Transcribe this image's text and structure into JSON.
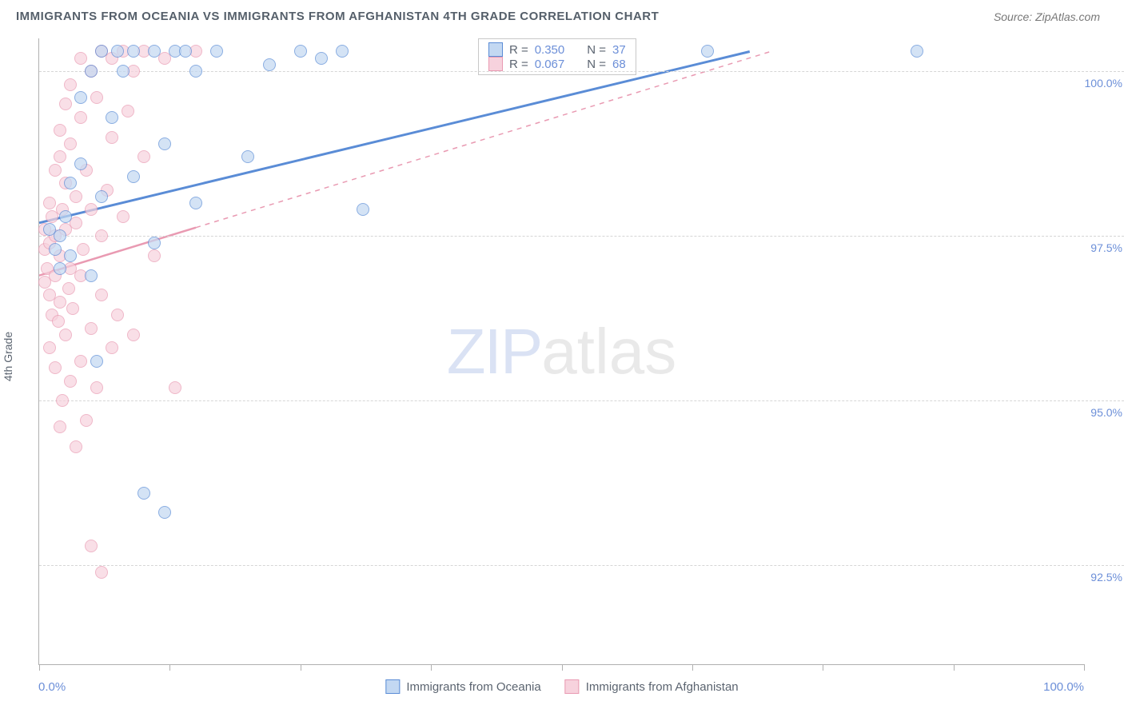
{
  "title": "IMMIGRANTS FROM OCEANIA VS IMMIGRANTS FROM AFGHANISTAN 4TH GRADE CORRELATION CHART",
  "source": "Source: ZipAtlas.com",
  "chart": {
    "type": "scatter",
    "y_axis_title": "4th Grade",
    "xlim": [
      0,
      100
    ],
    "ylim": [
      91.0,
      100.5
    ],
    "x_ticks": [
      0,
      12.5,
      25,
      37.5,
      50,
      62.5,
      75,
      87.5,
      100
    ],
    "x_tick_labels": {
      "0": "0.0%",
      "100": "100.0%"
    },
    "y_gridlines": [
      92.5,
      95.0,
      97.5,
      100.0
    ],
    "y_tick_labels": {
      "92.5": "92.5%",
      "95.0": "95.0%",
      "97.5": "97.5%",
      "100.0": "100.0%"
    },
    "background_color": "#ffffff",
    "grid_color": "#d6d6d6",
    "axis_color": "#b0b0b0",
    "tick_label_color": "#6c8fd8",
    "tick_fontsize": 14,
    "title_fontsize": 15,
    "title_color": "#555f6a",
    "marker_radius": 8,
    "marker_opacity": 0.7,
    "series": [
      {
        "name": "Immigrants from Oceania",
        "stroke": "#5a8cd6",
        "fill": "#c3d8f2",
        "R": "0.350",
        "N": "37",
        "regression": {
          "x1": 0,
          "y1": 97.7,
          "x2": 68,
          "y2": 100.3,
          "dash": false,
          "width": 3
        },
        "points": [
          [
            1,
            97.6
          ],
          [
            1.5,
            97.3
          ],
          [
            2,
            97.0
          ],
          [
            2,
            97.5
          ],
          [
            2.5,
            97.8
          ],
          [
            3,
            97.2
          ],
          [
            3,
            98.3
          ],
          [
            4,
            98.6
          ],
          [
            4,
            99.6
          ],
          [
            5,
            96.9
          ],
          [
            5,
            100.0
          ],
          [
            5.5,
            95.6
          ],
          [
            6,
            98.1
          ],
          [
            6,
            100.3
          ],
          [
            7,
            99.3
          ],
          [
            7.5,
            100.3
          ],
          [
            8,
            100.0
          ],
          [
            9,
            98.4
          ],
          [
            9,
            100.3
          ],
          [
            10,
            93.6
          ],
          [
            11,
            97.4
          ],
          [
            11,
            100.3
          ],
          [
            12,
            93.3
          ],
          [
            12,
            98.9
          ],
          [
            13,
            100.3
          ],
          [
            14,
            100.3
          ],
          [
            15,
            98.0
          ],
          [
            15,
            100.0
          ],
          [
            17,
            100.3
          ],
          [
            20,
            98.7
          ],
          [
            22,
            100.1
          ],
          [
            25,
            100.3
          ],
          [
            27,
            100.2
          ],
          [
            29,
            100.3
          ],
          [
            31,
            97.9
          ],
          [
            64,
            100.3
          ],
          [
            84,
            100.3
          ]
        ]
      },
      {
        "name": "Immigrants from Afghanistan",
        "stroke": "#e99ab2",
        "fill": "#f7d2dd",
        "R": "0.067",
        "N": "68",
        "regression": {
          "x1": 0,
          "y1": 96.9,
          "x2": 70,
          "y2": 100.3,
          "dash": true,
          "width": 1.5
        },
        "regression_solid_end_x": 15,
        "points": [
          [
            0.5,
            97.3
          ],
          [
            0.5,
            96.8
          ],
          [
            0.5,
            97.6
          ],
          [
            0.8,
            97.0
          ],
          [
            1,
            97.4
          ],
          [
            1,
            96.6
          ],
          [
            1,
            98.0
          ],
          [
            1,
            95.8
          ],
          [
            1.2,
            96.3
          ],
          [
            1.2,
            97.8
          ],
          [
            1.5,
            96.9
          ],
          [
            1.5,
            97.5
          ],
          [
            1.5,
            95.5
          ],
          [
            1.5,
            98.5
          ],
          [
            1.8,
            96.2
          ],
          [
            2,
            97.2
          ],
          [
            2,
            96.5
          ],
          [
            2,
            98.7
          ],
          [
            2,
            94.6
          ],
          [
            2,
            99.1
          ],
          [
            2.2,
            97.9
          ],
          [
            2.2,
            95.0
          ],
          [
            2.5,
            96.0
          ],
          [
            2.5,
            98.3
          ],
          [
            2.5,
            97.6
          ],
          [
            2.5,
            99.5
          ],
          [
            2.8,
            96.7
          ],
          [
            3,
            95.3
          ],
          [
            3,
            97.0
          ],
          [
            3,
            98.9
          ],
          [
            3,
            99.8
          ],
          [
            3.2,
            96.4
          ],
          [
            3.5,
            97.7
          ],
          [
            3.5,
            94.3
          ],
          [
            3.5,
            98.1
          ],
          [
            4,
            96.9
          ],
          [
            4,
            95.6
          ],
          [
            4,
            99.3
          ],
          [
            4,
            100.2
          ],
          [
            4.2,
            97.3
          ],
          [
            4.5,
            98.5
          ],
          [
            4.5,
            94.7
          ],
          [
            5,
            96.1
          ],
          [
            5,
            97.9
          ],
          [
            5,
            100.0
          ],
          [
            5,
            92.8
          ],
          [
            5.5,
            99.6
          ],
          [
            5.5,
            95.2
          ],
          [
            6,
            97.5
          ],
          [
            6,
            96.6
          ],
          [
            6,
            100.3
          ],
          [
            6,
            92.4
          ],
          [
            6.5,
            98.2
          ],
          [
            7,
            99.0
          ],
          [
            7,
            95.8
          ],
          [
            7,
            100.2
          ],
          [
            7.5,
            96.3
          ],
          [
            8,
            97.8
          ],
          [
            8,
            100.3
          ],
          [
            8.5,
            99.4
          ],
          [
            9,
            96.0
          ],
          [
            9,
            100.0
          ],
          [
            10,
            98.7
          ],
          [
            10,
            100.3
          ],
          [
            11,
            97.2
          ],
          [
            12,
            100.2
          ],
          [
            13,
            95.2
          ],
          [
            15,
            100.3
          ]
        ]
      }
    ]
  },
  "watermark": {
    "part1": "ZIP",
    "part2": "atlas"
  },
  "stat_legend": {
    "R_label": "R =",
    "N_label": "N ="
  }
}
